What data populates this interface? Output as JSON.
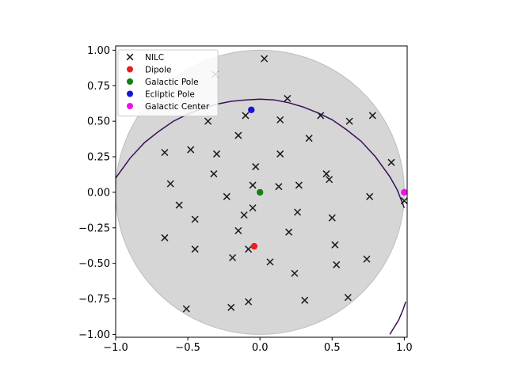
{
  "chart_data": {
    "type": "scatter",
    "title": "",
    "xlabel": "",
    "ylabel": "",
    "xlim": [
      -1.0,
      1.02
    ],
    "ylim": [
      -1.02,
      1.03
    ],
    "xticks": [
      "−1.0",
      "−0.5",
      "0.0",
      "0.5",
      "1.0"
    ],
    "xtick_values": [
      -1.0,
      -0.5,
      0.0,
      0.5,
      1.0
    ],
    "yticks": [
      "1.00",
      "0.75",
      "0.50",
      "0.25",
      "0.00",
      "−0.25",
      "−0.50",
      "−0.75",
      "−1.00"
    ],
    "ytick_values": [
      1.0,
      0.75,
      0.5,
      0.25,
      0.0,
      -0.25,
      -0.5,
      -0.75,
      -1.0
    ],
    "grid": false,
    "legend_position": "top-left",
    "disk": {
      "center": [
        0,
        0
      ],
      "radius": 1.0,
      "fill": "#d6d6d6",
      "edge": "#bdbdbd"
    },
    "series": [
      {
        "name": "NILC",
        "marker": "x",
        "color": "#1a1a1a",
        "points": [
          [
            0.03,
            0.94
          ],
          [
            -0.31,
            0.83
          ],
          [
            0.19,
            0.66
          ],
          [
            -0.1,
            0.54
          ],
          [
            0.14,
            0.51
          ],
          [
            0.42,
            0.54
          ],
          [
            0.62,
            0.5
          ],
          [
            0.78,
            0.54
          ],
          [
            -0.36,
            0.5
          ],
          [
            -0.15,
            0.4
          ],
          [
            0.34,
            0.38
          ],
          [
            -0.66,
            0.28
          ],
          [
            -0.48,
            0.3
          ],
          [
            -0.3,
            0.27
          ],
          [
            0.14,
            0.27
          ],
          [
            0.91,
            0.21
          ],
          [
            -0.03,
            0.18
          ],
          [
            -0.32,
            0.13
          ],
          [
            0.46,
            0.13
          ],
          [
            0.48,
            0.09
          ],
          [
            -0.62,
            0.06
          ],
          [
            -0.05,
            0.05
          ],
          [
            0.13,
            0.04
          ],
          [
            0.27,
            0.05
          ],
          [
            -0.23,
            -0.03
          ],
          [
            0.76,
            -0.03
          ],
          [
            1.0,
            -0.06
          ],
          [
            -0.56,
            -0.09
          ],
          [
            -0.05,
            -0.11
          ],
          [
            0.26,
            -0.14
          ],
          [
            -0.11,
            -0.16
          ],
          [
            0.5,
            -0.18
          ],
          [
            -0.45,
            -0.19
          ],
          [
            -0.15,
            -0.27
          ],
          [
            0.2,
            -0.28
          ],
          [
            -0.66,
            -0.32
          ],
          [
            0.52,
            -0.37
          ],
          [
            -0.45,
            -0.4
          ],
          [
            -0.08,
            -0.4
          ],
          [
            -0.19,
            -0.46
          ],
          [
            0.74,
            -0.47
          ],
          [
            0.07,
            -0.49
          ],
          [
            0.53,
            -0.51
          ],
          [
            0.24,
            -0.57
          ],
          [
            0.61,
            -0.74
          ],
          [
            -0.08,
            -0.77
          ],
          [
            0.31,
            -0.76
          ],
          [
            -0.2,
            -0.81
          ],
          [
            -0.51,
            -0.82
          ]
        ]
      },
      {
        "name": "Dipole",
        "marker": "o",
        "color": "#e8201c",
        "points": [
          [
            -0.04,
            -0.38
          ]
        ]
      },
      {
        "name": "Galactic Pole",
        "marker": "o",
        "color": "#108010",
        "points": [
          [
            0.0,
            0.0
          ]
        ]
      },
      {
        "name": "Ecliptic Pole",
        "marker": "o",
        "color": "#1515d6",
        "points": [
          [
            -0.06,
            0.58
          ]
        ]
      },
      {
        "name": "Galactic Center",
        "marker": "o",
        "color": "#ee10ee",
        "points": [
          [
            1.0,
            0.0
          ]
        ]
      }
    ],
    "curves": [
      {
        "color": "#3b0f57",
        "points": [
          [
            -1.0,
            0.1
          ],
          [
            -0.9,
            0.24
          ],
          [
            -0.8,
            0.35
          ],
          [
            -0.7,
            0.43
          ],
          [
            -0.6,
            0.5
          ],
          [
            -0.5,
            0.55
          ],
          [
            -0.4,
            0.59
          ],
          [
            -0.3,
            0.62
          ],
          [
            -0.2,
            0.64
          ],
          [
            -0.1,
            0.65
          ],
          [
            0.0,
            0.655
          ],
          [
            0.1,
            0.65
          ],
          [
            0.2,
            0.63
          ],
          [
            0.3,
            0.6
          ],
          [
            0.4,
            0.56
          ],
          [
            0.5,
            0.51
          ],
          [
            0.6,
            0.44
          ],
          [
            0.7,
            0.36
          ],
          [
            0.8,
            0.25
          ],
          [
            0.9,
            0.11
          ],
          [
            0.95,
            0.02
          ],
          [
            1.0,
            -0.11
          ]
        ]
      },
      {
        "color": "#3b0f57",
        "points": [
          [
            0.9,
            -1.0
          ],
          [
            0.93,
            -0.95
          ],
          [
            0.96,
            -0.9
          ],
          [
            0.99,
            -0.83
          ],
          [
            1.01,
            -0.77
          ]
        ]
      }
    ]
  }
}
